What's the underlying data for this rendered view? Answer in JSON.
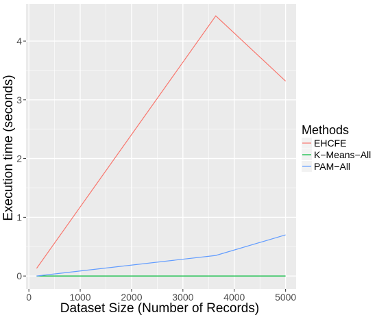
{
  "chart_data": {
    "type": "line",
    "xlabel": "Dataset Size (Number of Records)",
    "ylabel": "Execution time (seconds)",
    "x": [
      150,
      3640,
      5000
    ],
    "xlim": [
      -55,
      5205
    ],
    "ylim": [
      -0.22,
      4.63
    ],
    "xticks": [
      0,
      1000,
      2000,
      3000,
      4000,
      5000
    ],
    "yticks": [
      0,
      1,
      2,
      3,
      4
    ],
    "grid": true,
    "legend_title": "Methods",
    "legend_position": "right",
    "series": [
      {
        "name": "EHCFE",
        "color": "#F8766D",
        "values": [
          0.13,
          4.43,
          3.32
        ]
      },
      {
        "name": "K−Means−All",
        "color": "#00BA38",
        "values": [
          0.0,
          0.0,
          0.0
        ]
      },
      {
        "name": "PAM−All",
        "color": "#619CFF",
        "values": [
          0.0,
          0.35,
          0.7
        ]
      }
    ]
  },
  "colors": {
    "panel_background": "#EBEBEB",
    "grid": "#FFFFFF"
  }
}
